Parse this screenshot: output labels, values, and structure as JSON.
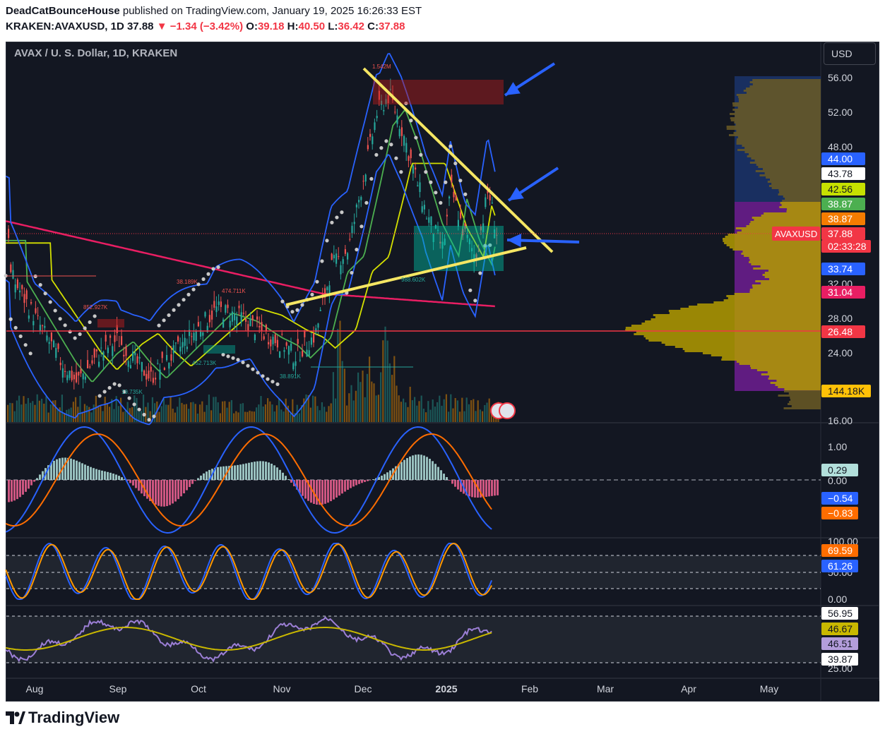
{
  "header": {
    "author": "DeadCatBounceHouse",
    "published_text": " published on TradingView.com, January 19, 2025 16:26:33 EST",
    "symbol_line": "KRAKEN:AVAXUSD, 1D",
    "last": "37.88",
    "change": "▼ −1.34 (−3.42%)",
    "o_label": "O:",
    "o_val": "39.18",
    "h_label": "H:",
    "h_val": "40.50",
    "l_label": "L:",
    "l_val": "36.42",
    "c_label": "C:",
    "c_val": "37.88"
  },
  "chart": {
    "title": "AVAX / U. S. Dollar, 1D, KRAKEN",
    "currency_button": "USD",
    "price_axis_ticks": [
      "56.00",
      "52.00",
      "48.00",
      "32.00",
      "28.00",
      "24.00",
      "16.00"
    ],
    "price_pills": [
      {
        "text": "44.00",
        "bg": "#2962ff",
        "fg": "#ffffff"
      },
      {
        "text": "43.78",
        "bg": "#ffffff",
        "fg": "#131722"
      },
      {
        "text": "42.56",
        "bg": "#c6e000",
        "fg": "#131722"
      },
      {
        "text": "38.87",
        "bg": "#4caf50",
        "fg": "#ffffff"
      },
      {
        "text": "38.87",
        "bg": "#f57c00",
        "fg": "#ffffff"
      },
      {
        "text": "37.88",
        "bg": "#f23645",
        "fg": "#ffffff"
      },
      {
        "text": "02:33:28",
        "bg": "#f23645",
        "fg": "#ffffff"
      },
      {
        "text": "33.74",
        "bg": "#2962ff",
        "fg": "#ffffff"
      },
      {
        "text": "31.04",
        "bg": "#e91e63",
        "fg": "#ffffff"
      },
      {
        "text": "26.48",
        "bg": "#f23645",
        "fg": "#ffffff"
      },
      {
        "text": "144.18K",
        "bg": "#ffc107",
        "fg": "#131722"
      }
    ],
    "symbol_tag": "AVAXUSD",
    "macd_ticks": [
      "1.00",
      "0.00"
    ],
    "macd_pills": [
      {
        "text": "0.29",
        "bg": "#b2dfdb",
        "fg": "#131722"
      },
      {
        "text": "−0.54",
        "bg": "#2962ff",
        "fg": "#ffffff"
      },
      {
        "text": "−0.83",
        "bg": "#ff6d00",
        "fg": "#ffffff"
      }
    ],
    "stoch_ticks": [
      "100.00",
      "50.00",
      "0.00"
    ],
    "stoch_pills": [
      {
        "text": "69.59",
        "bg": "#ff6d00",
        "fg": "#ffffff"
      },
      {
        "text": "61.26",
        "bg": "#2962ff",
        "fg": "#ffffff"
      }
    ],
    "rsi_ticks": [
      "25.00"
    ],
    "rsi_pills": [
      {
        "text": "56.95",
        "bg": "#ffffff",
        "fg": "#131722"
      },
      {
        "text": "46.67",
        "bg": "#c9b800",
        "fg": "#131722"
      },
      {
        "text": "46.51",
        "bg": "#b39ddb",
        "fg": "#131722"
      },
      {
        "text": "39.87",
        "bg": "#ffffff",
        "fg": "#131722"
      }
    ],
    "time_axis": [
      "Aug",
      "Sep",
      "Oct",
      "Nov",
      "Dec",
      "2025",
      "Feb",
      "Mar",
      "Apr",
      "May"
    ],
    "annotations": [
      "1.542M",
      "38.189K",
      "474.711K",
      "852.927K",
      "988.602K",
      "452.713K",
      "38.891K",
      "19.735K"
    ]
  },
  "chart_data": {
    "type": "line",
    "title": "AVAX / U. S. Dollar, 1D, KRAKEN",
    "x": [
      "Aug",
      "Sep",
      "Oct",
      "Nov",
      "Dec",
      "2025"
    ],
    "series": [
      {
        "values": [
          25,
          21,
          26,
          25,
          52,
          38
        ]
      }
    ],
    "ylim": [
      16,
      58
    ],
    "last": 37.88
  },
  "footer": {
    "brand": "TradingView"
  }
}
